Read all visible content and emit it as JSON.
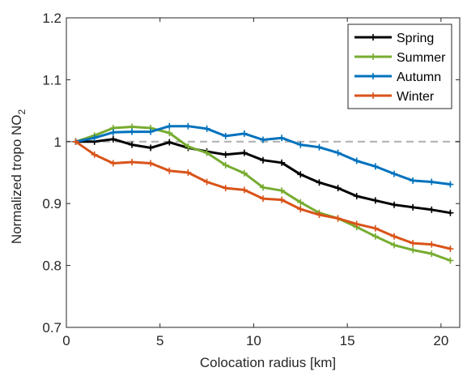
{
  "chart_data": {
    "type": "line",
    "title": "",
    "xlabel": "Colocation radius [km]",
    "ylabel": {
      "main": "Normalized tropo NO",
      "subscript": "2"
    },
    "xlim": [
      0,
      21
    ],
    "ylim": [
      0.7,
      1.2
    ],
    "xticks": [
      0,
      5,
      10,
      15,
      20
    ],
    "xtick_labels": [
      "0",
      "5",
      "10",
      "15",
      "20"
    ],
    "yticks": [
      0.7,
      0.8,
      0.9,
      1.0,
      1.1,
      1.2
    ],
    "ytick_labels": [
      "0.7",
      "0.8",
      "0.9",
      "1",
      "1.1",
      "1.2"
    ],
    "grid": false,
    "legend_position": "top-right",
    "reference_line": {
      "y": 1.0,
      "style": "dashed",
      "color": "#b3b3b3"
    },
    "x": [
      0.5,
      1.5,
      2.5,
      3.5,
      4.5,
      5.5,
      6.5,
      7.5,
      8.5,
      9.5,
      10.5,
      11.5,
      12.5,
      13.5,
      14.5,
      15.5,
      16.5,
      17.5,
      18.5,
      19.5,
      20.5
    ],
    "series": [
      {
        "name": "Spring",
        "color": "#000000",
        "values": [
          1.0,
          1.0,
          1.004,
          0.995,
          0.99,
          0.999,
          0.99,
          0.984,
          0.979,
          0.982,
          0.97,
          0.966,
          0.947,
          0.934,
          0.925,
          0.912,
          0.905,
          0.898,
          0.894,
          0.89,
          0.885
        ]
      },
      {
        "name": "Summer",
        "color": "#77ac30",
        "values": [
          1.0,
          1.01,
          1.022,
          1.024,
          1.022,
          1.014,
          0.992,
          0.982,
          0.962,
          0.949,
          0.926,
          0.921,
          0.902,
          0.885,
          0.876,
          0.862,
          0.847,
          0.833,
          0.825,
          0.819,
          0.808
        ]
      },
      {
        "name": "Autumn",
        "color": "#0072bd",
        "values": [
          1.0,
          1.006,
          1.015,
          1.016,
          1.016,
          1.025,
          1.025,
          1.021,
          1.009,
          1.013,
          1.003,
          1.006,
          0.995,
          0.991,
          0.982,
          0.969,
          0.96,
          0.948,
          0.937,
          0.935,
          0.931
        ]
      },
      {
        "name": "Winter",
        "color": "#d95319",
        "values": [
          1.0,
          0.979,
          0.965,
          0.967,
          0.965,
          0.953,
          0.95,
          0.935,
          0.925,
          0.922,
          0.908,
          0.906,
          0.891,
          0.882,
          0.876,
          0.867,
          0.86,
          0.847,
          0.836,
          0.834,
          0.827
        ]
      }
    ]
  }
}
